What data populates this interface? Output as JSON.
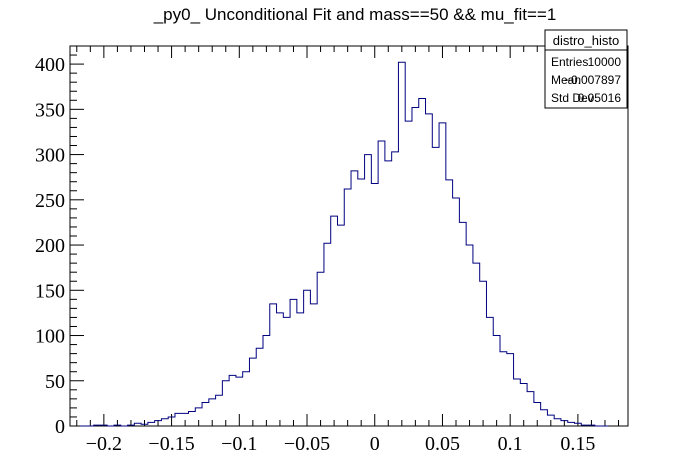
{
  "chart_data": {
    "type": "histogram",
    "title": "_py0_ Unconditional Fit and mass==50 && mu_fit==1",
    "xlabel": "",
    "ylabel": "",
    "xlim": [
      -0.225,
      0.187
    ],
    "ylim": [
      0,
      420
    ],
    "bin_width": 0.005,
    "x_ticks": [
      -0.2,
      -0.15,
      -0.1,
      -0.05,
      0,
      0.05,
      0.1,
      0.15
    ],
    "x_tick_labels": [
      "−0.2",
      "−0.15",
      "−0.1",
      "−0.05",
      "0",
      "0.05",
      "0.1",
      "0.15"
    ],
    "y_ticks": [
      0,
      50,
      100,
      150,
      200,
      250,
      300,
      350,
      400
    ],
    "y_tick_labels": [
      "0",
      "50",
      "100",
      "150",
      "200",
      "250",
      "300",
      "350",
      "400"
    ],
    "grid": false,
    "line_color": "#000080",
    "bins": [
      {
        "x": -0.215,
        "y": 0
      },
      {
        "x": -0.21,
        "y": 0
      },
      {
        "x": -0.205,
        "y": 1
      },
      {
        "x": -0.2,
        "y": 1
      },
      {
        "x": -0.195,
        "y": 0
      },
      {
        "x": -0.19,
        "y": 1
      },
      {
        "x": -0.185,
        "y": 0
      },
      {
        "x": -0.18,
        "y": 1
      },
      {
        "x": -0.175,
        "y": 3
      },
      {
        "x": -0.17,
        "y": 2
      },
      {
        "x": -0.165,
        "y": 4
      },
      {
        "x": -0.16,
        "y": 6
      },
      {
        "x": -0.155,
        "y": 8
      },
      {
        "x": -0.15,
        "y": 10
      },
      {
        "x": -0.145,
        "y": 14
      },
      {
        "x": -0.14,
        "y": 14
      },
      {
        "x": -0.135,
        "y": 16
      },
      {
        "x": -0.13,
        "y": 20
      },
      {
        "x": -0.125,
        "y": 26
      },
      {
        "x": -0.12,
        "y": 30
      },
      {
        "x": -0.115,
        "y": 34
      },
      {
        "x": -0.11,
        "y": 50
      },
      {
        "x": -0.105,
        "y": 56
      },
      {
        "x": -0.1,
        "y": 54
      },
      {
        "x": -0.095,
        "y": 60
      },
      {
        "x": -0.09,
        "y": 75
      },
      {
        "x": -0.085,
        "y": 86
      },
      {
        "x": -0.08,
        "y": 100
      },
      {
        "x": -0.075,
        "y": 135
      },
      {
        "x": -0.07,
        "y": 125
      },
      {
        "x": -0.065,
        "y": 120
      },
      {
        "x": -0.06,
        "y": 140
      },
      {
        "x": -0.055,
        "y": 125
      },
      {
        "x": -0.05,
        "y": 150
      },
      {
        "x": -0.045,
        "y": 135
      },
      {
        "x": -0.04,
        "y": 170
      },
      {
        "x": -0.035,
        "y": 202
      },
      {
        "x": -0.03,
        "y": 232
      },
      {
        "x": -0.025,
        "y": 222
      },
      {
        "x": -0.02,
        "y": 262
      },
      {
        "x": -0.015,
        "y": 282
      },
      {
        "x": -0.01,
        "y": 273
      },
      {
        "x": -0.005,
        "y": 300
      },
      {
        "x": 0.0,
        "y": 268
      },
      {
        "x": 0.005,
        "y": 315
      },
      {
        "x": 0.01,
        "y": 293
      },
      {
        "x": 0.015,
        "y": 303
      },
      {
        "x": 0.02,
        "y": 402
      },
      {
        "x": 0.025,
        "y": 337
      },
      {
        "x": 0.03,
        "y": 352
      },
      {
        "x": 0.035,
        "y": 362
      },
      {
        "x": 0.04,
        "y": 345
      },
      {
        "x": 0.045,
        "y": 308
      },
      {
        "x": 0.05,
        "y": 335
      },
      {
        "x": 0.055,
        "y": 272
      },
      {
        "x": 0.06,
        "y": 252
      },
      {
        "x": 0.065,
        "y": 225
      },
      {
        "x": 0.07,
        "y": 200
      },
      {
        "x": 0.075,
        "y": 180
      },
      {
        "x": 0.08,
        "y": 160
      },
      {
        "x": 0.085,
        "y": 120
      },
      {
        "x": 0.09,
        "y": 100
      },
      {
        "x": 0.095,
        "y": 82
      },
      {
        "x": 0.1,
        "y": 80
      },
      {
        "x": 0.105,
        "y": 52
      },
      {
        "x": 0.11,
        "y": 47
      },
      {
        "x": 0.115,
        "y": 38
      },
      {
        "x": 0.12,
        "y": 26
      },
      {
        "x": 0.125,
        "y": 18
      },
      {
        "x": 0.13,
        "y": 12
      },
      {
        "x": 0.135,
        "y": 8
      },
      {
        "x": 0.14,
        "y": 6
      },
      {
        "x": 0.145,
        "y": 4
      },
      {
        "x": 0.15,
        "y": 3
      },
      {
        "x": 0.155,
        "y": 1
      },
      {
        "x": 0.16,
        "y": 1
      },
      {
        "x": 0.165,
        "y": 0
      },
      {
        "x": 0.17,
        "y": 0
      }
    ],
    "stats_box": {
      "title": "distro_histo",
      "placement": "top-right",
      "rows": [
        {
          "label": "Entries",
          "value": "10000"
        },
        {
          "label": "Mean",
          "value": "−0.007897"
        },
        {
          "label": "Std Dev",
          "value": "0.05016"
        }
      ]
    }
  }
}
